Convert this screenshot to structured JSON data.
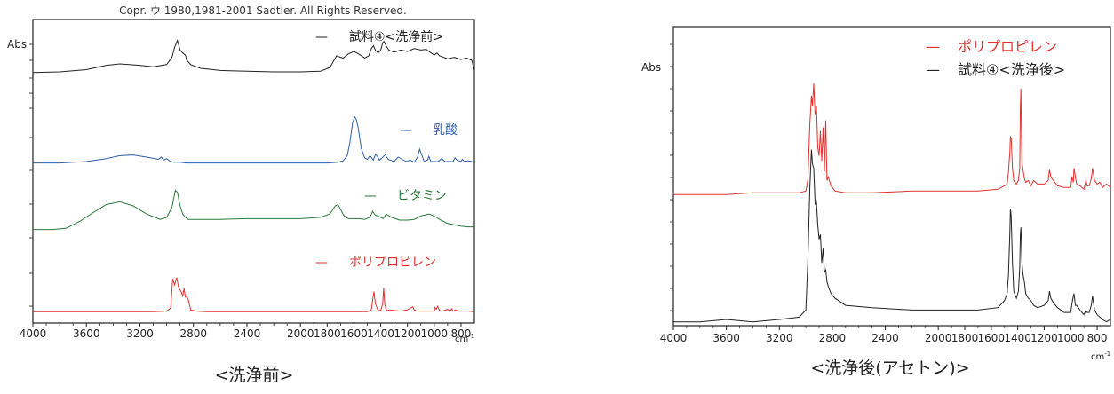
{
  "chart_data": [
    {
      "type": "line",
      "header": "Copr. ウ 1980,1981-2001 Sadtler. All Rights Reserved.",
      "ylabel": "Abs",
      "xunit_base": "cm",
      "xunit_sup": "-1",
      "caption": "<洗浄前>",
      "xlim": [
        4000,
        700
      ],
      "xticks": [
        "4000",
        "3600",
        "3200",
        "2800",
        "2400",
        "2000",
        "1800",
        "1600",
        "1400",
        "1200",
        "1000",
        "800"
      ],
      "xtick_values": [
        4000,
        3600,
        3200,
        2800,
        2400,
        2000,
        1800,
        1600,
        1400,
        1200,
        1000,
        800
      ],
      "ylim": [
        0,
        100
      ],
      "legend": [
        {
          "dash": "—",
          "name": "試料④<洗浄前>",
          "color": "#222222"
        },
        {
          "dash": "—",
          "name": "乳酸",
          "color": "#2e5fa8"
        },
        {
          "dash": "—",
          "name": "ビタミン",
          "color": "#2a7a3a"
        },
        {
          "dash": "—",
          "name": "ポリプロピレン",
          "color": "#e0322f"
        }
      ],
      "series": [
        {
          "name": "試料④<洗浄前>",
          "color": "#222222",
          "x": [
            4000,
            3800,
            3600,
            3450,
            3350,
            3200,
            3100,
            3000,
            2960,
            2940,
            2920,
            2900,
            2880,
            2860,
            2850,
            2820,
            2750,
            2600,
            2400,
            2200,
            2000,
            1850,
            1780,
            1730,
            1700,
            1680,
            1640,
            1600,
            1560,
            1520,
            1490,
            1470,
            1455,
            1440,
            1420,
            1400,
            1385,
            1375,
            1360,
            1340,
            1300,
            1250,
            1200,
            1150,
            1100,
            1060,
            1040,
            1000,
            980,
            960,
            900,
            850,
            800,
            760,
            720,
            700
          ],
          "y": [
            49,
            50,
            53,
            59,
            61,
            59,
            57,
            60,
            70,
            84,
            93,
            80,
            76,
            73,
            66,
            60,
            55,
            52,
            51,
            50,
            50,
            51,
            56,
            72,
            70,
            69,
            75,
            78,
            74,
            69,
            72,
            82,
            86,
            80,
            76,
            80,
            90,
            92,
            86,
            80,
            77,
            80,
            78,
            82,
            80,
            81,
            78,
            73,
            76,
            72,
            68,
            70,
            67,
            69,
            66,
            52
          ]
        },
        {
          "name": "乳酸",
          "color": "#2e5fa8",
          "x": [
            4000,
            3800,
            3600,
            3450,
            3350,
            3250,
            3150,
            3060,
            3040,
            3020,
            3000,
            2980,
            2950,
            2900,
            2850,
            2700,
            2500,
            2200,
            2000,
            1800,
            1720,
            1680,
            1650,
            1630,
            1610,
            1595,
            1585,
            1570,
            1545,
            1520,
            1500,
            1480,
            1455,
            1440,
            1425,
            1410,
            1395,
            1380,
            1365,
            1345,
            1300,
            1270,
            1240,
            1210,
            1180,
            1150,
            1125,
            1110,
            1095,
            1075,
            1050,
            1040,
            1025,
            1000,
            970,
            945,
            920,
            880,
            860,
            845,
            830,
            800,
            790,
            775,
            750,
            720,
            700
          ],
          "y": [
            20,
            20,
            22,
            26,
            30,
            31,
            28,
            25,
            28,
            24,
            26,
            23,
            21,
            21,
            20,
            20,
            20,
            20,
            20,
            20,
            21,
            23,
            30,
            48,
            75,
            83,
            81,
            70,
            40,
            27,
            25,
            30,
            24,
            32,
            29,
            24,
            26,
            29,
            31,
            25,
            22,
            28,
            25,
            22,
            24,
            21,
            28,
            39,
            32,
            22,
            24,
            29,
            22,
            22,
            22,
            26,
            22,
            22,
            22,
            27,
            24,
            22,
            25,
            22,
            23,
            22,
            21
          ]
        },
        {
          "name": "ビタミン",
          "color": "#2a7a3a",
          "x": [
            4000,
            3850,
            3750,
            3650,
            3550,
            3450,
            3350,
            3250,
            3150,
            3050,
            3000,
            2960,
            2935,
            2920,
            2900,
            2880,
            2860,
            2840,
            2800,
            2600,
            2400,
            2200,
            2000,
            1850,
            1780,
            1740,
            1720,
            1700,
            1680,
            1660,
            1640,
            1560,
            1520,
            1480,
            1460,
            1440,
            1420,
            1400,
            1380,
            1360,
            1320,
            1260,
            1200,
            1150,
            1100,
            1060,
            1040,
            1000,
            950,
            900,
            850,
            800,
            750,
            700
          ],
          "y": [
            15,
            15,
            17,
            27,
            40,
            52,
            56,
            50,
            38,
            30,
            33,
            48,
            73,
            70,
            50,
            38,
            33,
            30,
            30,
            30,
            31,
            31,
            31,
            33,
            38,
            50,
            52,
            45,
            37,
            33,
            31,
            31,
            30,
            33,
            42,
            36,
            35,
            33,
            31,
            38,
            33,
            29,
            29,
            30,
            35,
            37,
            38,
            35,
            29,
            24,
            22,
            20,
            19,
            19
          ]
        },
        {
          "name": "ポリプロピレン",
          "color": "#e0322f",
          "x": [
            4000,
            3500,
            3100,
            3000,
            2970,
            2955,
            2940,
            2925,
            2910,
            2890,
            2880,
            2870,
            2860,
            2850,
            2840,
            2820,
            2780,
            2700,
            2400,
            2000,
            1800,
            1600,
            1500,
            1470,
            1460,
            1450,
            1440,
            1420,
            1400,
            1385,
            1378,
            1370,
            1360,
            1350,
            1330,
            1300,
            1250,
            1200,
            1170,
            1160,
            1150,
            1130,
            1100,
            1050,
            1000,
            995,
            985,
            975,
            965,
            955,
            940,
            900,
            880,
            870,
            860,
            840,
            820,
            800,
            750,
            700
          ],
          "y": [
            1,
            1,
            1,
            2,
            7,
            55,
            45,
            57,
            40,
            33,
            27,
            39,
            25,
            25,
            22,
            4,
            2,
            1,
            1,
            1,
            1,
            1,
            1,
            4,
            20,
            34,
            14,
            3,
            3,
            14,
            40,
            13,
            5,
            3,
            4,
            3,
            2,
            4,
            8,
            9,
            4,
            2,
            2,
            2,
            2,
            8,
            5,
            10,
            5,
            2,
            2,
            5,
            2,
            6,
            2,
            4,
            2,
            2,
            2,
            1
          ]
        }
      ]
    },
    {
      "type": "line",
      "ylabel": "Abs",
      "xunit_base": "cm",
      "xunit_sup": "-1",
      "caption": "<洗浄後(アセトン)>",
      "xlim": [
        4000,
        700
      ],
      "xticks": [
        "4000",
        "3600",
        "3200",
        "2800",
        "2400",
        "2000",
        "1800",
        "1600",
        "1400",
        "1200",
        "1000",
        "800"
      ],
      "xtick_values": [
        4000,
        3600,
        3200,
        2800,
        2400,
        2000,
        1800,
        1600,
        1400,
        1200,
        1000,
        800
      ],
      "ylim": [
        0,
        100
      ],
      "legend": [
        {
          "dash": "—",
          "name": "ポリプロピレン",
          "color": "#e0322f"
        },
        {
          "dash": "—",
          "name": "試料④<洗浄後>",
          "color": "#222222"
        }
      ],
      "series": [
        {
          "name": "ポリプロピレン",
          "color": "#e0322f",
          "x": [
            4000,
            3800,
            3600,
            3400,
            3200,
            3050,
            3000,
            2985,
            2970,
            2958,
            2950,
            2940,
            2930,
            2920,
            2910,
            2900,
            2890,
            2880,
            2870,
            2860,
            2850,
            2840,
            2830,
            2810,
            2780,
            2700,
            2500,
            2200,
            1900,
            1700,
            1550,
            1500,
            1480,
            1470,
            1460,
            1455,
            1450,
            1440,
            1430,
            1410,
            1395,
            1385,
            1380,
            1376,
            1372,
            1368,
            1360,
            1350,
            1340,
            1320,
            1300,
            1280,
            1250,
            1200,
            1170,
            1160,
            1150,
            1130,
            1100,
            1050,
            1000,
            990,
            980,
            975,
            965,
            955,
            930,
            900,
            885,
            875,
            860,
            845,
            835,
            820,
            800,
            780,
            760,
            730,
            700
          ],
          "y": [
            30,
            30,
            30,
            31,
            31,
            31,
            32,
            38,
            70,
            86,
            80,
            93,
            75,
            80,
            57,
            52,
            66,
            49,
            68,
            43,
            72,
            38,
            40,
            35,
            32,
            31,
            31,
            32,
            32,
            32,
            33,
            35,
            36,
            43,
            54,
            63,
            62,
            45,
            38,
            36,
            38,
            45,
            80,
            90,
            66,
            48,
            44,
            39,
            37,
            38,
            35,
            38,
            36,
            36,
            38,
            44,
            40,
            38,
            35,
            34,
            34,
            40,
            37,
            45,
            40,
            36,
            35,
            33,
            38,
            35,
            35,
            39,
            45,
            38,
            36,
            37,
            34,
            36,
            34
          ]
        },
        {
          "name": "試料④<洗浄後>",
          "color": "#222222",
          "x": [
            4000,
            3800,
            3600,
            3400,
            3200,
            3050,
            3000,
            2985,
            2970,
            2958,
            2950,
            2940,
            2930,
            2920,
            2910,
            2900,
            2890,
            2880,
            2870,
            2860,
            2850,
            2840,
            2830,
            2810,
            2780,
            2700,
            2500,
            2200,
            1900,
            1700,
            1550,
            1500,
            1480,
            1470,
            1460,
            1455,
            1450,
            1440,
            1430,
            1410,
            1395,
            1385,
            1380,
            1376,
            1372,
            1368,
            1360,
            1350,
            1340,
            1320,
            1300,
            1280,
            1250,
            1200,
            1170,
            1160,
            1150,
            1130,
            1100,
            1050,
            1000,
            990,
            980,
            975,
            965,
            955,
            930,
            900,
            885,
            875,
            860,
            845,
            835,
            820,
            800,
            780,
            760,
            730,
            700
          ],
          "y": [
            5,
            5,
            6,
            5,
            6,
            7,
            10,
            30,
            62,
            78,
            72,
            70,
            55,
            56,
            46,
            40,
            42,
            30,
            36,
            26,
            27,
            22,
            20,
            17,
            15,
            12,
            11,
            10,
            10,
            10,
            11,
            14,
            17,
            25,
            42,
            53,
            50,
            30,
            18,
            15,
            18,
            28,
            42,
            45,
            38,
            30,
            25,
            22,
            17,
            15,
            14,
            12,
            11,
            12,
            14,
            18,
            15,
            13,
            11,
            9,
            9,
            13,
            16,
            17,
            12,
            12,
            10,
            8,
            10,
            9,
            9,
            12,
            16,
            10,
            8,
            7,
            6,
            5,
            6
          ]
        }
      ]
    }
  ]
}
